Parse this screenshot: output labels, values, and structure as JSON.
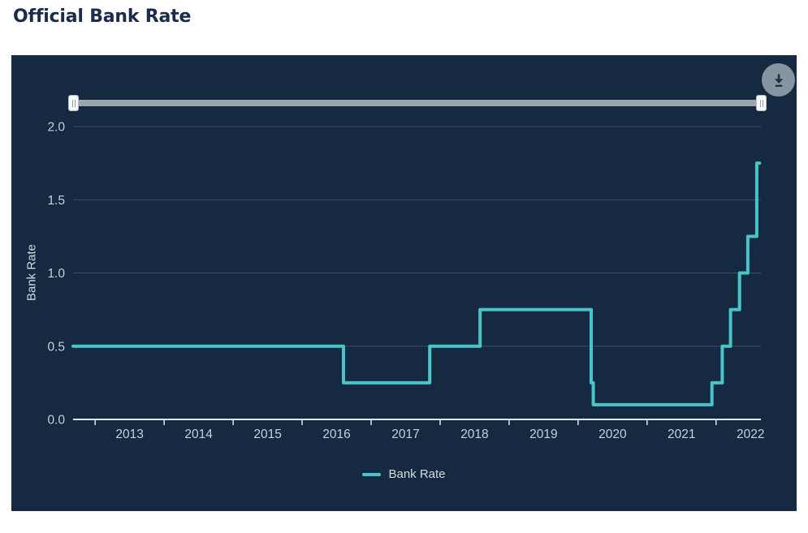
{
  "page": {
    "title": "Official Bank Rate"
  },
  "colors": {
    "page_background": "#ffffff",
    "panel_background": "#152a40",
    "title_text": "#1b2b4b",
    "line": "#48c5c9",
    "grid": "#3e4e64",
    "axis": "#e2e7ec",
    "tick_text": "#c7cfd7",
    "slider_track": "#9aa5ae",
    "slider_handle": "#f7f8f9",
    "download_circle": "#8794a1",
    "download_glyph": "#1d3349"
  },
  "toolbar": {
    "download_icon": "download-icon"
  },
  "slider": {
    "type": "range",
    "selected_range_percent": [
      0,
      100
    ],
    "handles": [
      "min-handle",
      "max-handle"
    ]
  },
  "chart_data": {
    "type": "line",
    "subtype": "step",
    "title": "Official Bank Rate",
    "xlabel": "",
    "ylabel": "Bank Rate",
    "grid": true,
    "legend_position": "bottom",
    "legend": [
      {
        "name": "Bank Rate",
        "color": "#48c5c9"
      }
    ],
    "axes": {
      "x_min": 2012.68,
      "x_max": 2022.65,
      "y_min": 0.0,
      "y_max": 2.0
    },
    "y_ticks": [
      {
        "value": 0.0,
        "label": "0.0"
      },
      {
        "value": 0.5,
        "label": "0.5"
      },
      {
        "value": 1.0,
        "label": "1.0"
      },
      {
        "value": 1.5,
        "label": "1.5"
      },
      {
        "value": 2.0,
        "label": "2.0"
      }
    ],
    "x_ticks": [
      {
        "value": 2013,
        "label": "2013"
      },
      {
        "value": 2014,
        "label": "2014"
      },
      {
        "value": 2015,
        "label": "2015"
      },
      {
        "value": 2016,
        "label": "2016"
      },
      {
        "value": 2017,
        "label": "2017"
      },
      {
        "value": 2018,
        "label": "2018"
      },
      {
        "value": 2019,
        "label": "2019"
      },
      {
        "value": 2020,
        "label": "2020"
      },
      {
        "value": 2021,
        "label": "2021"
      },
      {
        "value": 2022,
        "label": "2022"
      }
    ],
    "series": [
      {
        "name": "Bank Rate",
        "color": "#48c5c9",
        "step_points": [
          [
            2012.68,
            0.5
          ],
          [
            2016.6,
            0.25
          ],
          [
            2017.85,
            0.5
          ],
          [
            2018.58,
            0.75
          ],
          [
            2020.19,
            0.25
          ],
          [
            2020.22,
            0.1
          ],
          [
            2021.94,
            0.25
          ],
          [
            2022.09,
            0.5
          ],
          [
            2022.21,
            0.75
          ],
          [
            2022.34,
            1.0
          ],
          [
            2022.46,
            1.25
          ],
          [
            2022.59,
            1.75
          ]
        ],
        "x_end": 2022.63
      }
    ]
  }
}
